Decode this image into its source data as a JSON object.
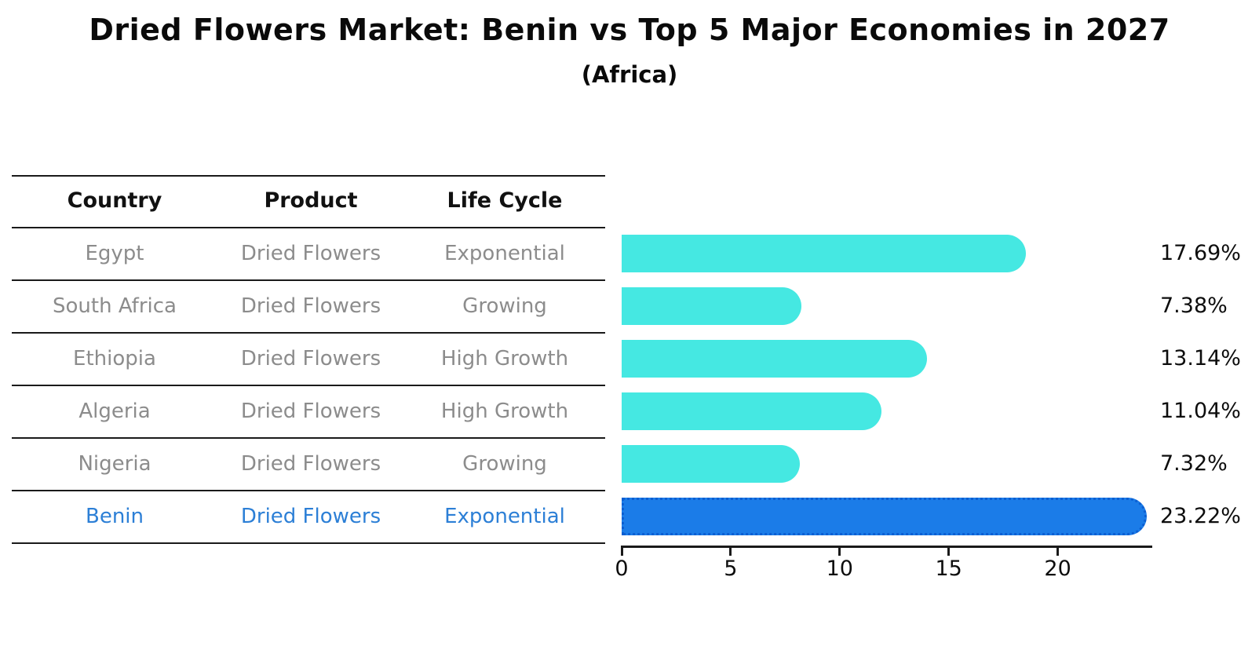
{
  "title": "Dried Flowers Market: Benin vs Top 5 Major Economies in 2027",
  "subtitle": "(Africa)",
  "colors": {
    "bar": "#45e8e2",
    "highlight_bar": "#1b7ce8",
    "highlight_bar_edge": "#0c5fd2",
    "highlight_text": "#2c7fd6",
    "row_text": "#8c8c8c",
    "header_text": "#111111",
    "axis": "#1a1a1a"
  },
  "table": {
    "headers": [
      "Country",
      "Product",
      "Life Cycle"
    ],
    "rows": [
      {
        "country": "Egypt",
        "product": "Dried Flowers",
        "life_cycle": "Exponential",
        "highlight": false
      },
      {
        "country": "South Africa",
        "product": "Dried Flowers",
        "life_cycle": "Growing",
        "highlight": false
      },
      {
        "country": "Ethiopia",
        "product": "Dried Flowers",
        "life_cycle": "High Growth",
        "highlight": false
      },
      {
        "country": "Algeria",
        "product": "Dried Flowers",
        "life_cycle": "High Growth",
        "highlight": false
      },
      {
        "country": "Nigeria",
        "product": "Dried Flowers",
        "life_cycle": "Growing",
        "highlight": false
      },
      {
        "country": "Benin",
        "product": "Dried Flowers",
        "life_cycle": "Exponential",
        "highlight": true
      }
    ]
  },
  "chart_data": {
    "type": "bar",
    "orientation": "horizontal",
    "title": "Dried Flowers Market: Benin vs Top 5 Major Economies in 2027",
    "subtitle": "(Africa)",
    "categories": [
      "Egypt",
      "South Africa",
      "Ethiopia",
      "Algeria",
      "Nigeria",
      "Benin"
    ],
    "values": [
      17.69,
      7.38,
      13.14,
      11.04,
      7.32,
      23.22
    ],
    "value_labels": [
      "17.69%",
      "7.38%",
      "13.14%",
      "11.04%",
      "7.32%",
      "23.22%"
    ],
    "highlight_index": 5,
    "x_ticks": [
      0,
      5,
      10,
      15,
      20
    ],
    "xlim": [
      0,
      24.35
    ],
    "grid": false,
    "legend": null,
    "bar_color": "#45e8e2",
    "highlight_color": "#1b7ce8"
  }
}
